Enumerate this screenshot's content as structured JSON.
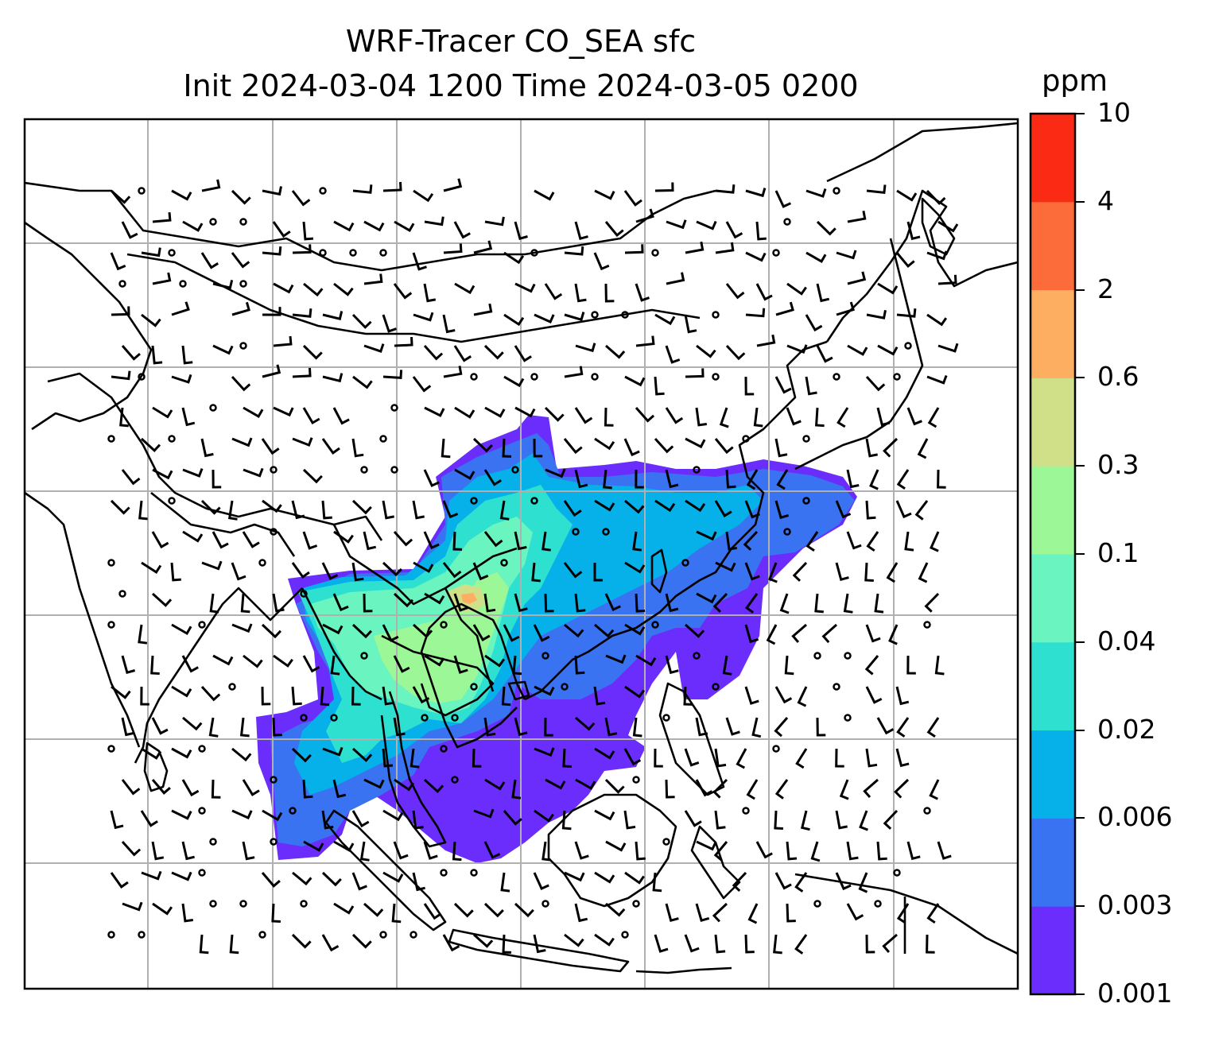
{
  "figure": {
    "title_line1": "WRF-Tracer CO_SEA sfc",
    "title_line2": "Init 2024-03-04 1200 Time 2024-03-05 0200"
  },
  "colorbar": {
    "unit": "ppm",
    "levels": [
      "0.001",
      "0.003",
      "0.006",
      "0.02",
      "0.04",
      "0.1",
      "0.3",
      "0.6",
      "2",
      "4",
      "10"
    ],
    "colors": [
      "#6a2dfb",
      "#3a73f2",
      "#06b0e8",
      "#2de0d0",
      "#6af5c0",
      "#9cf896",
      "#d0e088",
      "#fdae61",
      "#fb6c3a",
      "#fa2a14"
    ]
  },
  "map": {
    "region": "East and Southeast Asia",
    "field": "CO_SEA surface tracer concentration",
    "overlays": [
      "coastlines",
      "country borders",
      "lat/lon gridlines",
      "wind barbs",
      "calm circles"
    ]
  }
}
